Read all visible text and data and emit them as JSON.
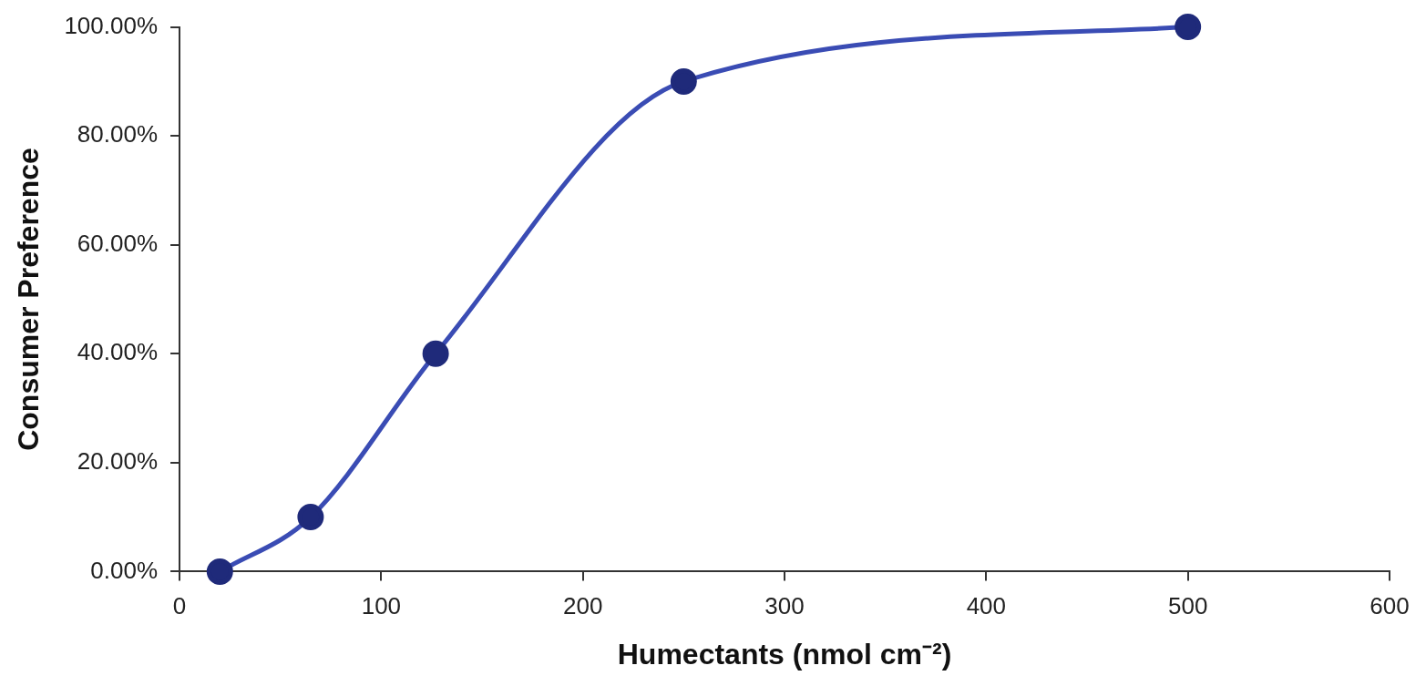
{
  "chart_data": {
    "type": "line",
    "xlabel": "Humectants (nmol cm⁻²)",
    "ylabel": "Consumer Preference",
    "x": [
      20,
      65,
      127,
      250,
      500
    ],
    "series": [
      {
        "color": "#3a4cb4",
        "values": [
          0,
          10,
          40,
          90,
          100
        ]
      }
    ],
    "xlim": [
      0,
      600
    ],
    "xticks": [
      0,
      100,
      200,
      300,
      400,
      500,
      600
    ],
    "ylim": [
      0,
      100
    ],
    "yticks": [
      {
        "value": 0,
        "label": "0.00%"
      },
      {
        "value": 20,
        "label": "20.00%"
      },
      {
        "value": 40,
        "label": "40.00%"
      },
      {
        "value": 60,
        "label": "60.00%"
      },
      {
        "value": 80,
        "label": "80.00%"
      },
      {
        "value": 100,
        "label": "100.00%"
      }
    ],
    "grid": false,
    "legend": false,
    "marker": "circle",
    "line_style": "solid"
  }
}
